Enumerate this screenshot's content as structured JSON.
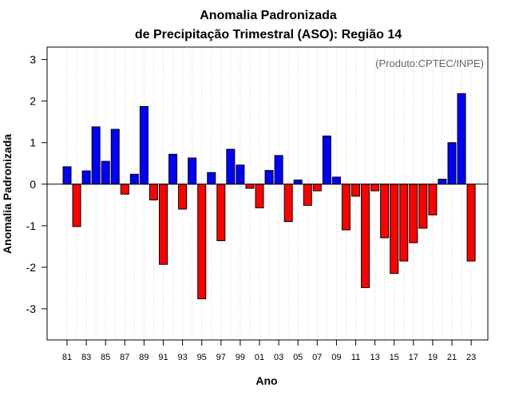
{
  "chart_data": {
    "type": "bar",
    "title": [
      "Anomalia Padronizada",
      "de Precipitação Trimestral (ASO): Região 14"
    ],
    "xlabel": "Ano",
    "ylabel": "Anomalia Padronizada",
    "credit": "(Produto:CPTEC/INPE)",
    "ylim": [
      -3.75,
      3.3
    ],
    "yticks": [
      -3,
      -2,
      -1,
      0,
      1,
      2,
      3
    ],
    "ytick_labels": [
      "-3",
      "-2",
      "-1",
      "0",
      "1",
      "2",
      "3"
    ],
    "categories": [
      "81",
      "82",
      "83",
      "84",
      "85",
      "86",
      "87",
      "88",
      "89",
      "90",
      "91",
      "92",
      "93",
      "94",
      "95",
      "96",
      "97",
      "98",
      "99",
      "00",
      "01",
      "02",
      "03",
      "04",
      "05",
      "06",
      "07",
      "08",
      "09",
      "10",
      "11",
      "12",
      "13",
      "14",
      "15",
      "16",
      "17",
      "18",
      "19",
      "20",
      "21",
      "22",
      "23"
    ],
    "xtick_labels": [
      "81",
      "83",
      "85",
      "87",
      "89",
      "91",
      "93",
      "95",
      "97",
      "99",
      "01",
      "03",
      "05",
      "07",
      "09",
      "11",
      "13",
      "15",
      "17",
      "19",
      "21",
      "23"
    ],
    "values": [
      0.42,
      -1.02,
      0.32,
      1.38,
      0.55,
      1.32,
      -0.24,
      0.24,
      1.87,
      -0.38,
      -1.93,
      0.72,
      -0.6,
      0.63,
      -2.76,
      0.28,
      -1.36,
      0.84,
      0.46,
      -0.1,
      -0.57,
      0.33,
      0.69,
      -0.9,
      0.1,
      -0.51,
      -0.16,
      1.16,
      0.17,
      -1.1,
      -0.29,
      -2.49,
      -0.16,
      -1.29,
      -2.15,
      -1.85,
      -1.41,
      -1.06,
      -0.74,
      0.12,
      1.0,
      2.18,
      -1.85
    ],
    "grid": true,
    "colors": {
      "positive": "#0000ff",
      "negative": "#ff0000",
      "grid": "#d3d3d3",
      "zero_line": "#000000"
    }
  }
}
